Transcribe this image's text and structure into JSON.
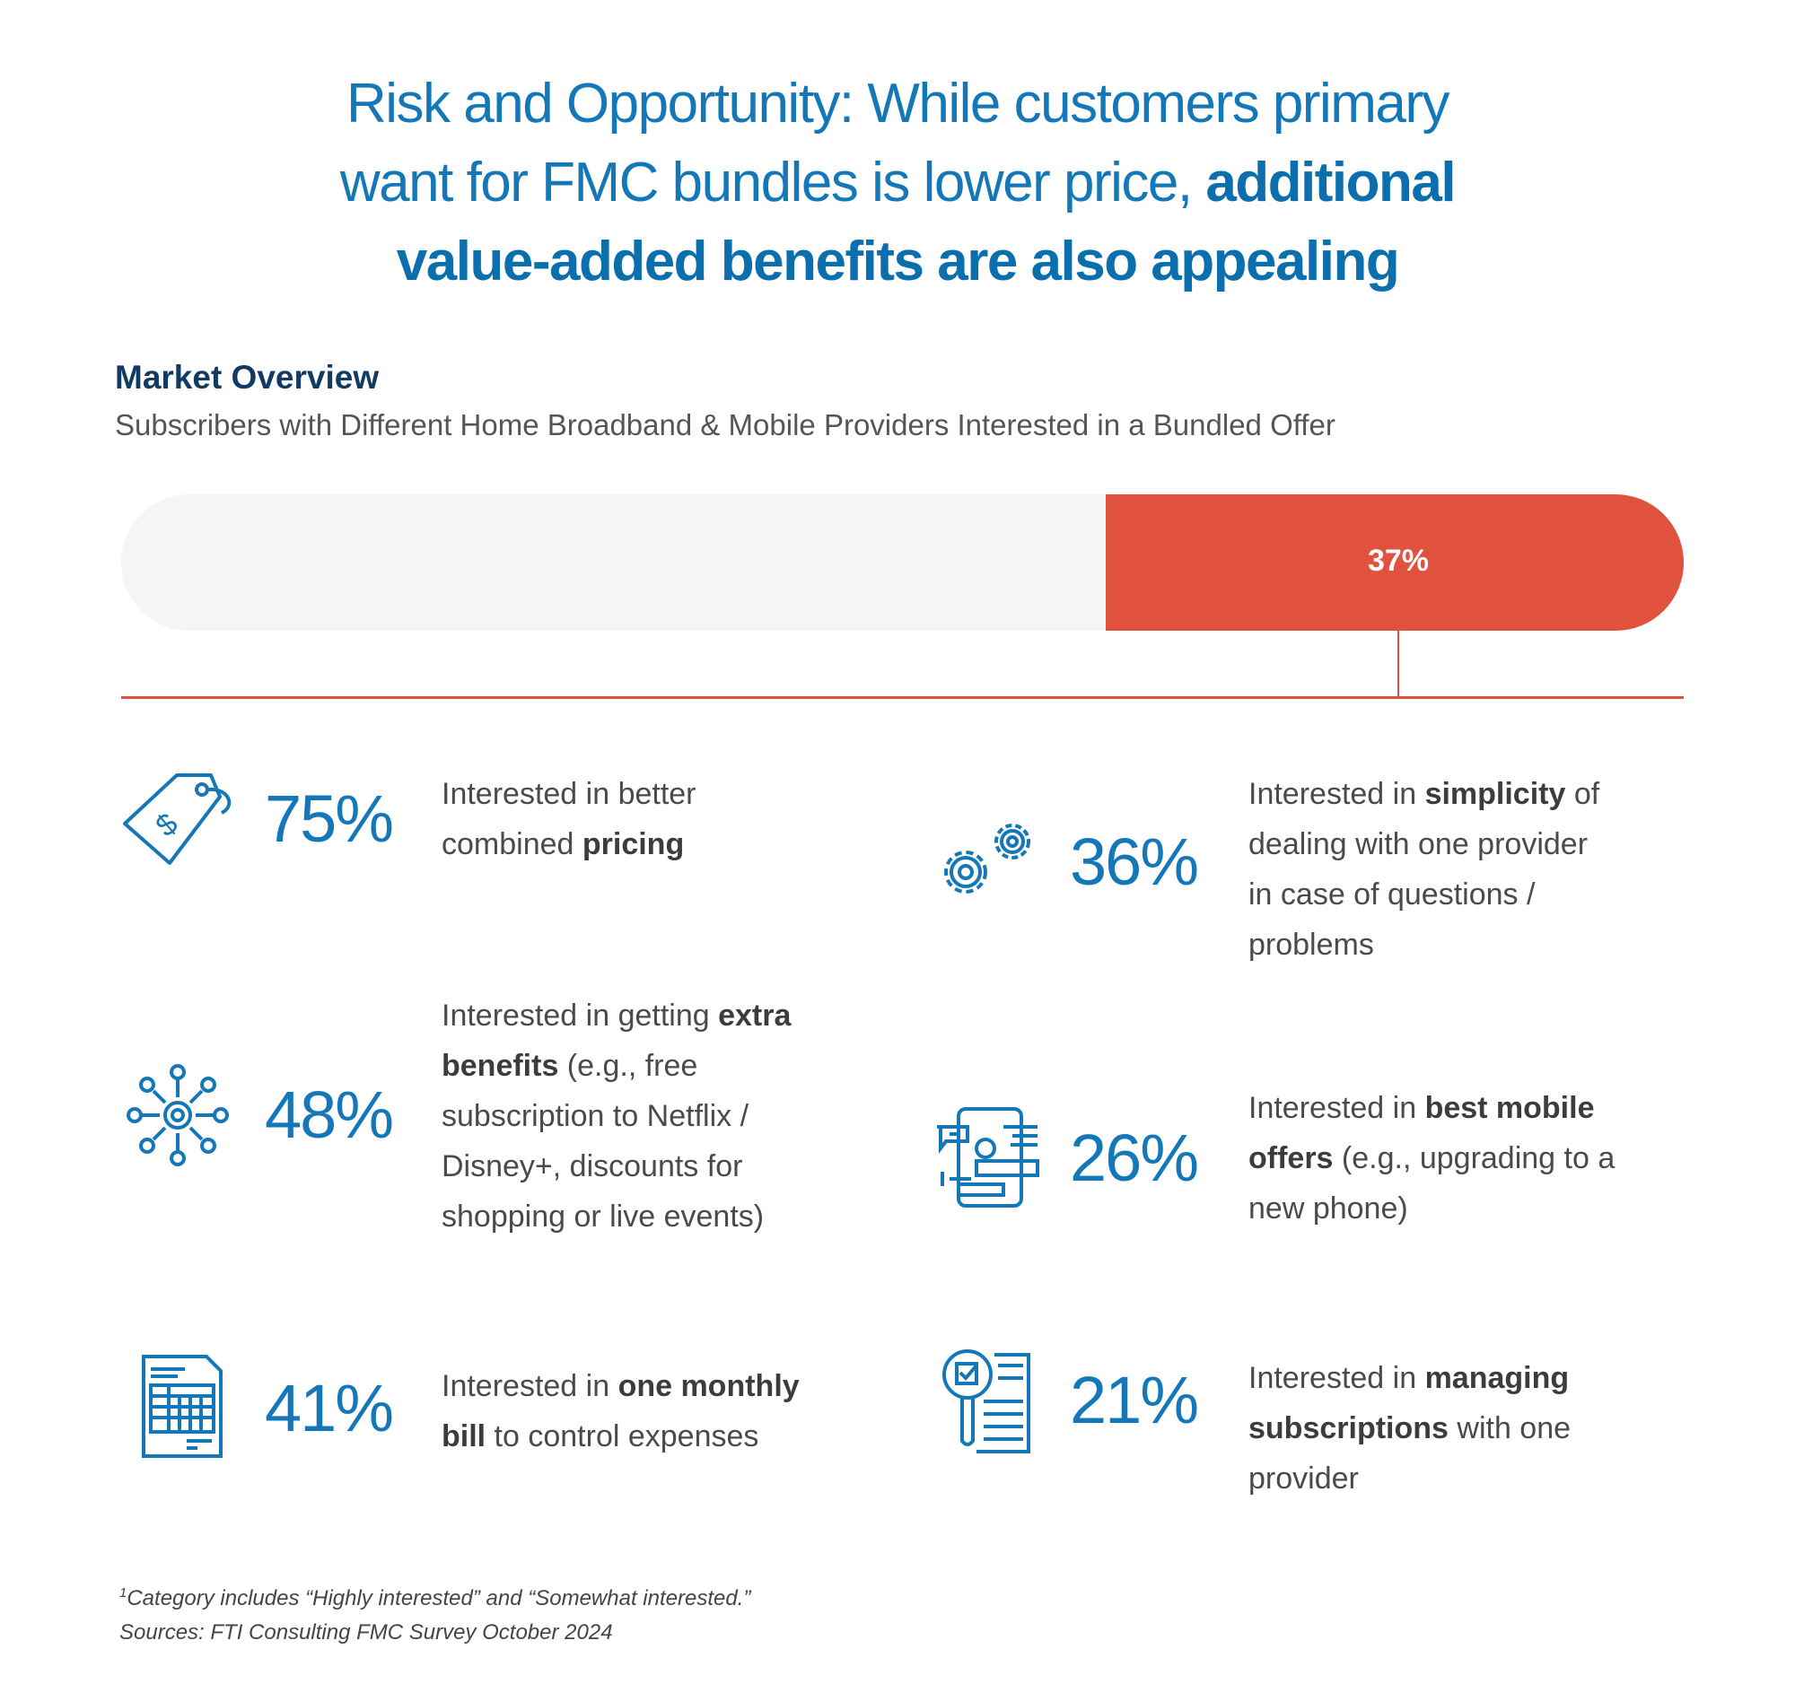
{
  "title": {
    "lines": [
      [
        {
          "text": "Risk and Opportunity: While customers primary",
          "bold": false
        }
      ],
      [
        {
          "text": "want for FMC bundles is lower price, ",
          "bold": false
        },
        {
          "text": "additional",
          "bold": true
        }
      ],
      [
        {
          "text": "value-added benefits are also appealing",
          "bold": true
        }
      ]
    ]
  },
  "section": {
    "title": "Market Overview",
    "subtitle": "Subscribers with Different Home Broadband & Mobile Providers Interested in a Bundled Offer"
  },
  "bar": {
    "value_pct": 37,
    "label": "37%",
    "fill_color": "#e0523d",
    "track_color": "#f4f5f7"
  },
  "colors": {
    "accent_blue": "#1478b8",
    "accent_red": "#e0523d",
    "heading_navy": "#123a62"
  },
  "items": [
    {
      "icon": "price-tag-icon",
      "pct": "75%",
      "lines": [
        [
          {
            "text": "Interested in better",
            "bold": false
          }
        ],
        [
          {
            "text": "combined ",
            "bold": false
          },
          {
            "text": "pricing",
            "bold": true
          }
        ]
      ]
    },
    {
      "icon": "network-hub-icon",
      "pct": "48%",
      "lines": [
        [
          {
            "text": "Interested in getting ",
            "bold": false
          },
          {
            "text": "extra",
            "bold": true
          }
        ],
        [
          {
            "text": "benefits",
            "bold": true
          },
          {
            "text": " (e.g., free",
            "bold": false
          }
        ],
        [
          {
            "text": "subscription to Netflix /",
            "bold": false
          }
        ],
        [
          {
            "text": "Disney+, discounts for",
            "bold": false
          }
        ],
        [
          {
            "text": "shopping or live events)",
            "bold": false
          }
        ]
      ]
    },
    {
      "icon": "bill-document-icon",
      "pct": "41%",
      "lines": [
        [
          {
            "text": "Interested in ",
            "bold": false
          },
          {
            "text": "one monthly",
            "bold": true
          }
        ],
        [
          {
            "text": "bill",
            "bold": true
          },
          {
            "text": " to control expenses",
            "bold": false
          }
        ]
      ]
    },
    {
      "icon": "gears-icon",
      "pct": "36%",
      "lines": [
        [
          {
            "text": "Interested in ",
            "bold": false
          },
          {
            "text": "simplicity",
            "bold": true
          },
          {
            "text": " of",
            "bold": false
          }
        ],
        [
          {
            "text": "dealing with one provider",
            "bold": false
          }
        ],
        [
          {
            "text": "in case of questions /",
            "bold": false
          }
        ],
        [
          {
            "text": "problems",
            "bold": false
          }
        ]
      ]
    },
    {
      "icon": "mobile-phone-icon",
      "pct": "26%",
      "lines": [
        [
          {
            "text": "Interested in ",
            "bold": false
          },
          {
            "text": "best mobile",
            "bold": true
          }
        ],
        [
          {
            "text": "offers",
            "bold": true
          },
          {
            "text": " (e.g., upgrading to a",
            "bold": false
          }
        ],
        [
          {
            "text": "new phone)",
            "bold": false
          }
        ]
      ]
    },
    {
      "icon": "subscription-search-icon",
      "pct": "21%",
      "lines": [
        [
          {
            "text": "Interested in ",
            "bold": false
          },
          {
            "text": "managing",
            "bold": true
          }
        ],
        [
          {
            "text": "subscriptions",
            "bold": true
          },
          {
            "text": " with one",
            "bold": false
          }
        ],
        [
          {
            "text": "provider",
            "bold": false
          }
        ]
      ]
    }
  ],
  "footnotes": {
    "marker": "1",
    "note": "Category includes “Highly interested” and “Somewhat interested.”",
    "source": "Sources: FTI Consulting FMC Survey October 2024"
  }
}
